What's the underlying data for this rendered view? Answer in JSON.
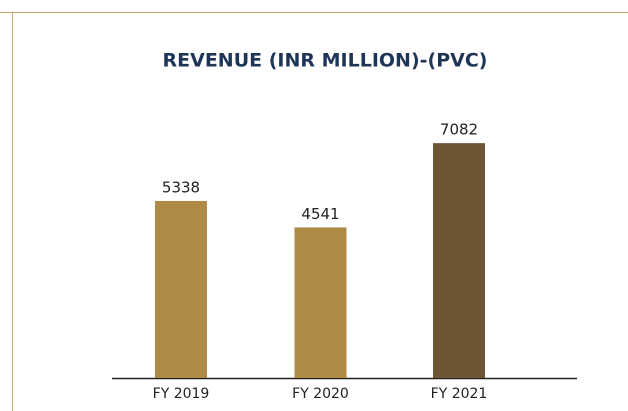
{
  "chart_data": {
    "type": "bar",
    "title": "REVENUE (INR MILLION)-(PVC)",
    "categories": [
      "FY 2019",
      "FY 2020",
      "FY 2021"
    ],
    "values": [
      5338,
      4541,
      7082
    ],
    "colors": [
      "#af8a46",
      "#af8a46",
      "#6e5533"
    ],
    "ylim": [
      0,
      8000
    ]
  }
}
